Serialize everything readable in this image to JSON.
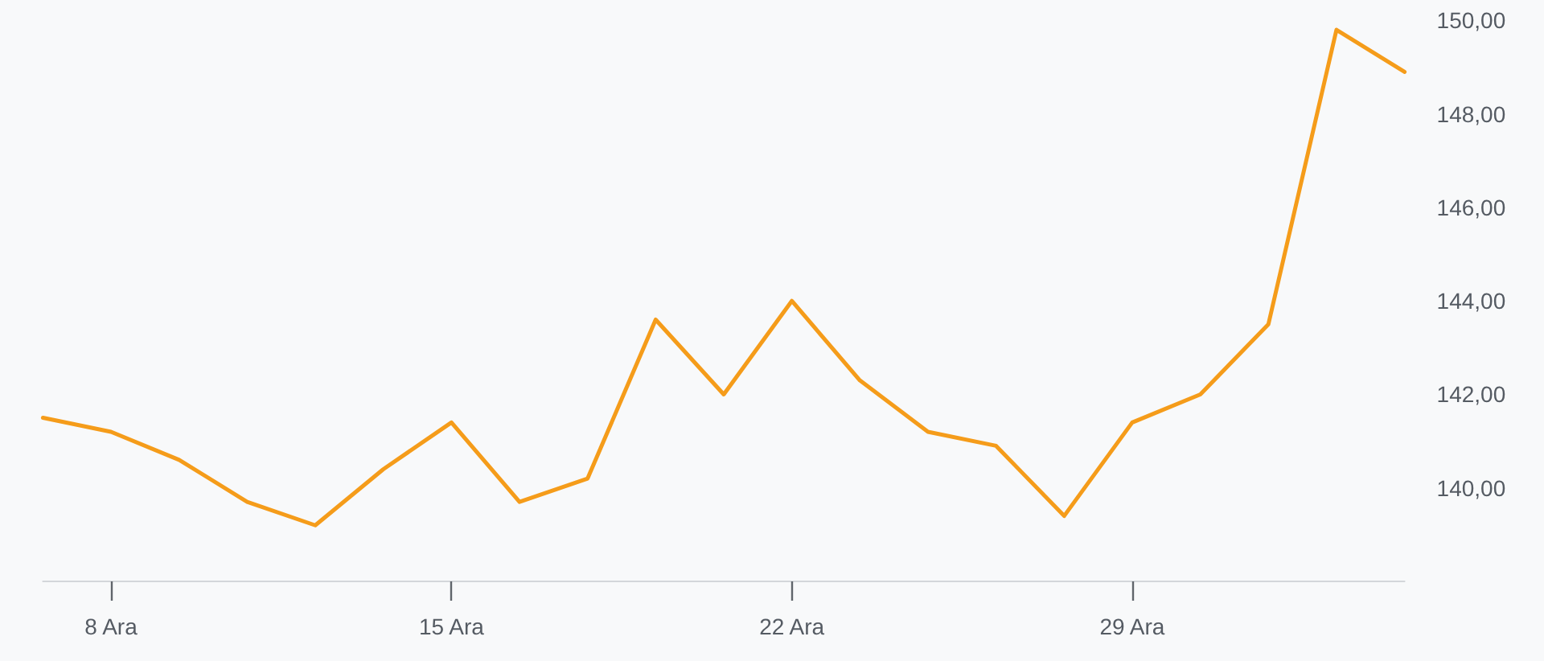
{
  "chart_data": {
    "type": "line",
    "categories": [
      null,
      "8 Ara",
      null,
      null,
      null,
      null,
      "15 Ara",
      null,
      null,
      null,
      null,
      "22 Ara",
      null,
      null,
      null,
      null,
      "29 Ara",
      null,
      null,
      null,
      null
    ],
    "series": [
      {
        "color": "#f59c1a",
        "values": [
          141.5,
          141.2,
          140.6,
          139.7,
          139.2,
          140.4,
          141.4,
          139.7,
          140.2,
          143.6,
          142.0,
          144.0,
          142.3,
          141.2,
          140.9,
          139.4,
          141.4,
          142.0,
          143.5,
          149.8,
          148.9
        ]
      }
    ],
    "ylim": [
      138,
      150
    ],
    "yticks": [
      {
        "value": 140,
        "label": "140,00"
      },
      {
        "value": 142,
        "label": "142,00"
      },
      {
        "value": 144,
        "label": "144,00"
      },
      {
        "value": 146,
        "label": "146,00"
      },
      {
        "value": 148,
        "label": "148,00"
      },
      {
        "value": 150,
        "label": "150,00"
      }
    ],
    "marker": "none",
    "line_style": "solid"
  }
}
